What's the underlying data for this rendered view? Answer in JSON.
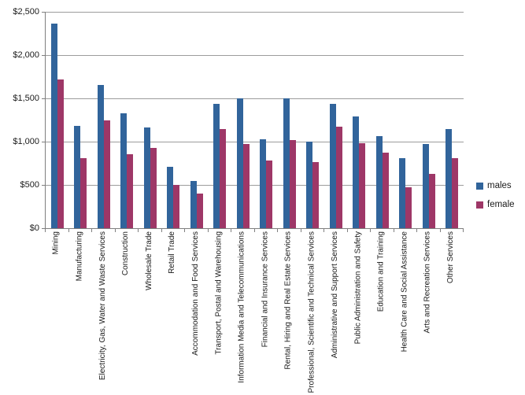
{
  "chart_data": {
    "type": "bar",
    "title": "",
    "xlabel": "",
    "ylabel": "",
    "categories": [
      "Mining",
      "Manufacturing",
      "Electricity, Gas, Water and Waste Services",
      "Construction",
      "Wholesale Trade",
      "Retail Trade",
      "Accommodation and Food Services",
      "Transport, Postal and Warehousing",
      "Information Media and Telecommunications",
      "Financial and Insurance Services",
      "Rental, Hiring and Real Estate Services",
      "Professional, Scientific and Technical Services",
      "Administrative and Support Services",
      "Public Administration and Safety",
      "Education and Training",
      "Health Care and Social Assistance",
      "Arts and Recreation Services",
      "Other Services"
    ],
    "series": [
      {
        "name": "males",
        "color": "#31649B",
        "values": [
          2360,
          1180,
          1655,
          1330,
          1160,
          710,
          550,
          1440,
          1500,
          1025,
          1500,
          1000,
          1435,
          1290,
          1060,
          805,
          975,
          1150
        ]
      },
      {
        "name": "female",
        "color": "#9E3767",
        "values": [
          1720,
          810,
          1250,
          855,
          930,
          500,
          400,
          1150,
          970,
          785,
          1015,
          760,
          1175,
          980,
          870,
          475,
          630,
          810
        ]
      }
    ],
    "ylim": [
      0,
      2500
    ],
    "ytick_step": 500,
    "ytick_labels": [
      "$0",
      "$500",
      "$1,000",
      "$1,500",
      "$2,000",
      "$2,500"
    ],
    "grid": true,
    "legend_position": "right",
    "value_format": "currency"
  }
}
